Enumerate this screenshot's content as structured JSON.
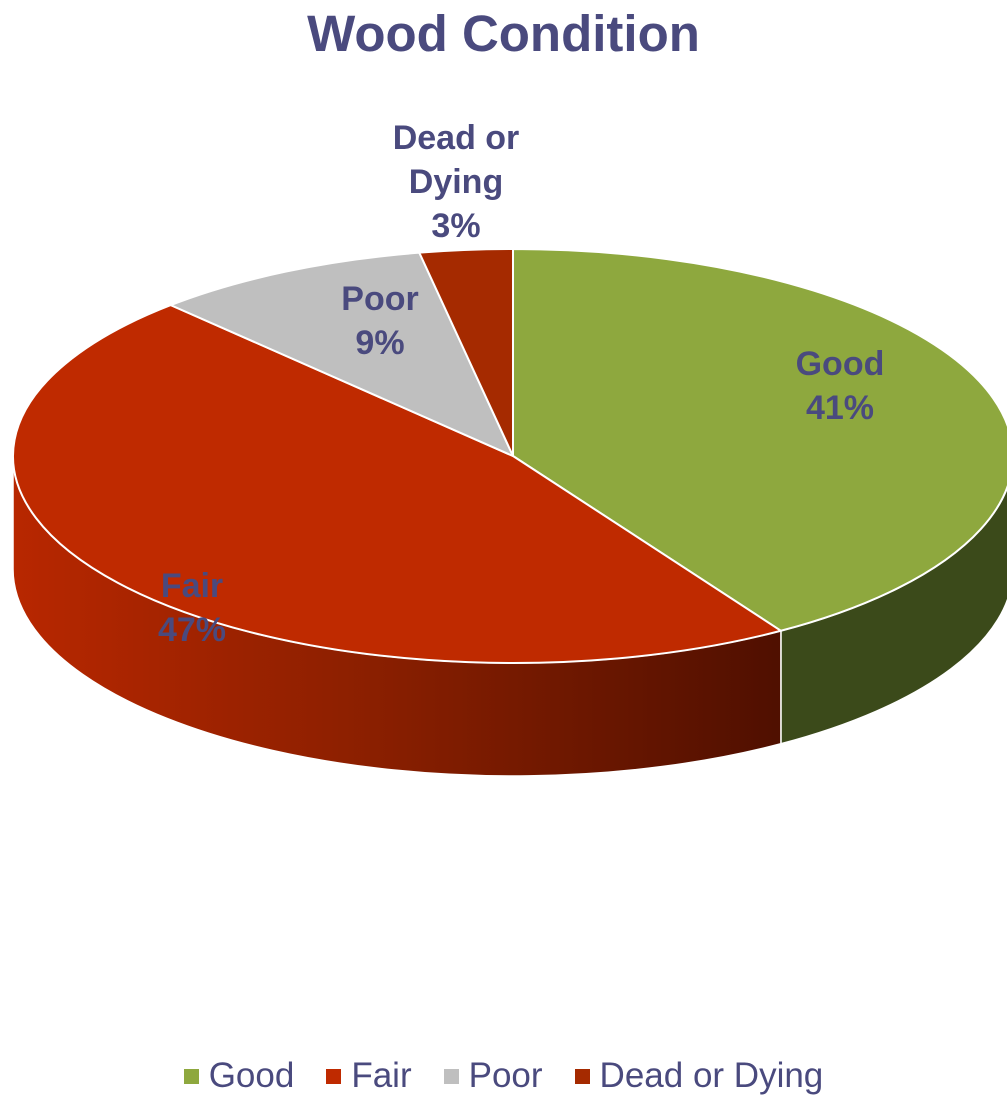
{
  "chart_data": {
    "type": "pie",
    "title": "Wood Condition",
    "categories": [
      "Good",
      "Fair",
      "Poor",
      "Dead or Dying"
    ],
    "values": [
      41,
      47,
      9,
      3
    ],
    "data_labels": [
      [
        "Good",
        "41%"
      ],
      [
        "Fair",
        "47%"
      ],
      [
        "Poor",
        "9%"
      ],
      [
        "Dead or",
        "Dying",
        "3%"
      ]
    ],
    "colors": [
      "#8ea83e",
      "#bf2a00",
      "#bfbfbf",
      "#a52a00"
    ],
    "side_colors": [
      "#3b4a1a",
      "#8c2000",
      "#8a8a8a",
      "#6e1a00"
    ],
    "legend_position": "bottom",
    "style": "3d"
  }
}
